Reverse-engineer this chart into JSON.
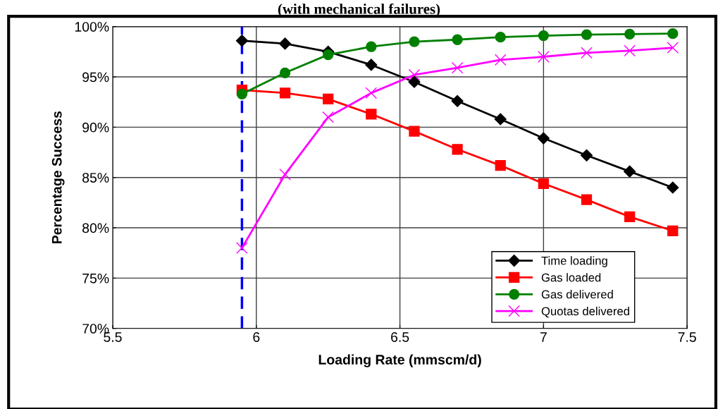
{
  "chart_data": {
    "type": "line",
    "title": "(with mechanical failures)",
    "xlabel": "Loading Rate (mmscm/d)",
    "ylabel": "Percentage Success",
    "x": [
      5.95,
      6.1,
      6.25,
      6.4,
      6.55,
      6.7,
      6.85,
      7.0,
      7.15,
      7.3,
      7.45
    ],
    "series": [
      {
        "name": "Time loading",
        "color": "#000000",
        "marker": "diamond",
        "values": [
          98.6,
          98.3,
          97.5,
          96.2,
          94.5,
          92.6,
          90.8,
          88.9,
          87.2,
          85.6,
          84.0
        ]
      },
      {
        "name": "Gas loaded",
        "color": "#ff0000",
        "marker": "square",
        "values": [
          93.7,
          93.4,
          92.8,
          91.3,
          89.6,
          87.8,
          86.2,
          84.4,
          82.8,
          81.1,
          79.7
        ]
      },
      {
        "name": "Gas delivered",
        "color": "#008000",
        "marker": "circle",
        "values": [
          93.3,
          95.4,
          97.2,
          98.0,
          98.5,
          98.7,
          98.95,
          99.1,
          99.2,
          99.25,
          99.3
        ]
      },
      {
        "name": "Quotas delivered",
        "color": "#ff00ff",
        "marker": "cross",
        "values": [
          78.0,
          85.3,
          91.0,
          93.4,
          95.2,
          95.9,
          96.7,
          97.0,
          97.4,
          97.6,
          97.9
        ]
      }
    ],
    "xlim": [
      5.5,
      7.5
    ],
    "xticks": [
      5.5,
      6,
      6.5,
      7,
      7.5
    ],
    "ylim": [
      70,
      100
    ],
    "yticks": [
      {
        "value": 70,
        "label": "70%"
      },
      {
        "value": 75,
        "label": "75%"
      },
      {
        "value": 80,
        "label": "80%"
      },
      {
        "value": 85,
        "label": "85%"
      },
      {
        "value": 90,
        "label": "90%"
      },
      {
        "value": 95,
        "label": "95%"
      },
      {
        "value": 100,
        "label": "100%"
      }
    ],
    "ref_lines": [
      {
        "axis": "x",
        "value": 5.95,
        "color": "#0000ff",
        "line_style": "dashed"
      }
    ],
    "grid": true,
    "legend": "bottom right"
  }
}
